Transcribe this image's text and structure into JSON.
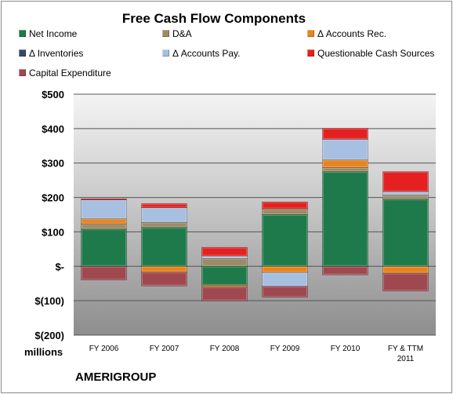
{
  "chart_data": {
    "type": "bar",
    "stacked": true,
    "title": "Free Cash Flow Components",
    "units_label": "millions",
    "footer": "AMERIGROUP",
    "categories": [
      "FY 2006",
      "FY 2007",
      "FY 2008",
      "FY 2009",
      "FY 2010",
      "FY & TTM 2011"
    ],
    "ylim": [
      -200,
      500
    ],
    "yticks": [
      -200,
      -100,
      0,
      100,
      200,
      300,
      400,
      500
    ],
    "ytick_labels": [
      "$(200)",
      "$(100)",
      "$-",
      "$100",
      "$200",
      "$300",
      "$400",
      "$500"
    ],
    "grid": true,
    "legend": "top",
    "series": [
      {
        "name": "Net Income",
        "color": "#1e7a4a",
        "values": [
          108,
          113,
          -55,
          150,
          275,
          195
        ]
      },
      {
        "name": "D&A",
        "color": "#9b8b66",
        "values": [
          15,
          15,
          23,
          17,
          12,
          12
        ]
      },
      {
        "name": "Δ Accounts Rec.",
        "color": "#e8841f",
        "values": [
          15,
          -17,
          -5,
          -18,
          22,
          -20
        ]
      },
      {
        "name": "Δ Inventories",
        "color": "#344a66",
        "values": [
          0,
          0,
          0,
          0,
          0,
          0
        ]
      },
      {
        "name": "Δ Accounts Pay.",
        "color": "#a7bfe0",
        "values": [
          55,
          42,
          7,
          -40,
          60,
          10
        ]
      },
      {
        "name": "Questionable Cash Sources",
        "color": "#e52020",
        "values": [
          3,
          12,
          25,
          20,
          32,
          58
        ]
      },
      {
        "name": "Capital Expenditure",
        "color": "#a04850",
        "values": [
          -40,
          -40,
          -40,
          -32,
          -25,
          -52
        ]
      }
    ]
  }
}
